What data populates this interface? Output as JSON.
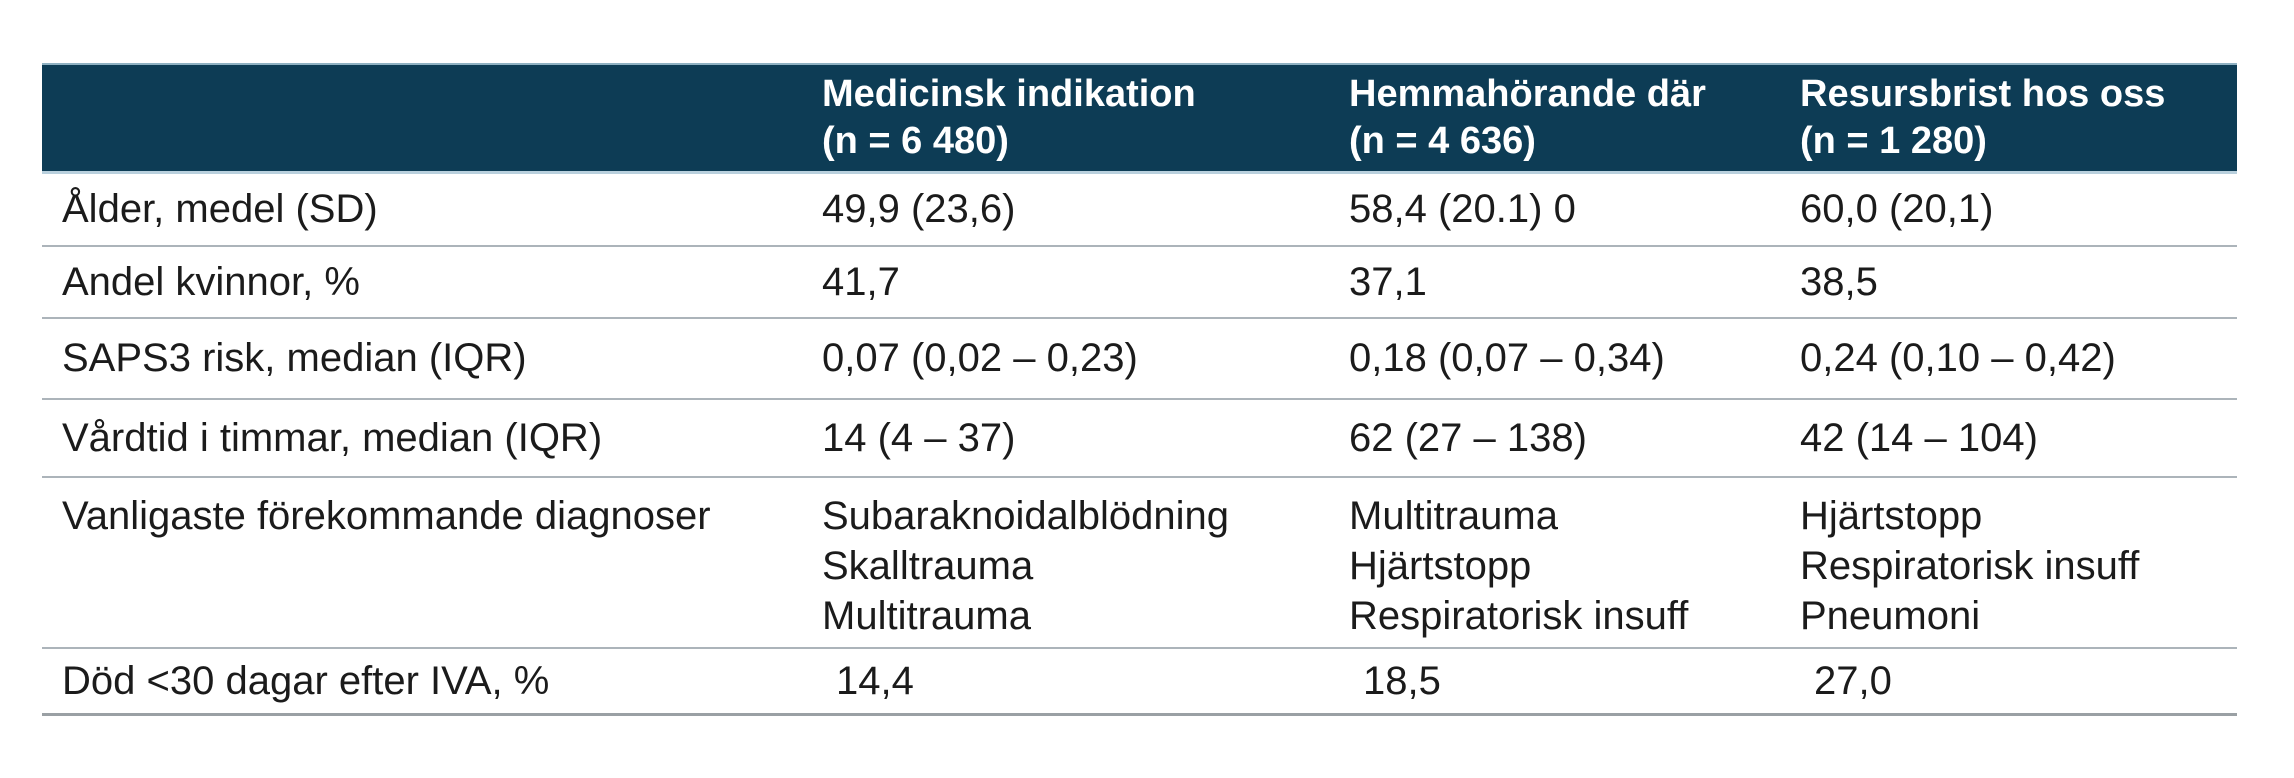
{
  "colors": {
    "header_bg": "#0d3c55",
    "header_text": "#ffffff",
    "body_text": "#1b1b1b",
    "divider": "#acb4ba",
    "header_divider": "#b9d0dd",
    "bottom_border": "#9aa0a4",
    "page_bg": "#ffffff"
  },
  "table": {
    "header": {
      "columns": [
        {
          "title": "",
          "subtitle": ""
        },
        {
          "title": "Medicinsk indikation",
          "subtitle": "(n = 6 480)"
        },
        {
          "title": "Hemmahörande där",
          "subtitle": "(n = 4 636)"
        },
        {
          "title": "Resursbrist hos oss",
          "subtitle": "(n = 1 280)"
        }
      ]
    },
    "rows": [
      {
        "label": "Ålder, medel (SD)",
        "values": [
          "49,9 (23,6)",
          "58,4 (20.1) 0",
          "60,0 (20,1)"
        ]
      },
      {
        "label": "Andel kvinnor, %",
        "values": [
          "41,7",
          "37,1",
          "38,5"
        ]
      },
      {
        "label": "SAPS3 risk, median (IQR)",
        "values": [
          "0,07 (0,02 – 0,23)",
          "0,18 (0,07 – 0,34)",
          "0,24 (0,10 – 0,42)"
        ]
      },
      {
        "label": "Vårdtid i timmar, median (IQR)",
        "values": [
          "14 (4 – 37)",
          "62 (27 – 138)",
          "42 (14 – 104)"
        ]
      },
      {
        "label": "Vanligaste förekommande diagnoser",
        "values": [
          "Subaraknoidalblödning\nSkalltrauma\nMultitrauma",
          "Multitrauma\nHjärtstopp\nRespiratorisk insuff",
          "Hjärtstopp\nRespiratorisk insuff\nPneumoni"
        ]
      },
      {
        "label": "Död <30 dagar efter IVA, %",
        "values": [
          "14,4",
          "18,5",
          "27,0"
        ]
      }
    ]
  }
}
